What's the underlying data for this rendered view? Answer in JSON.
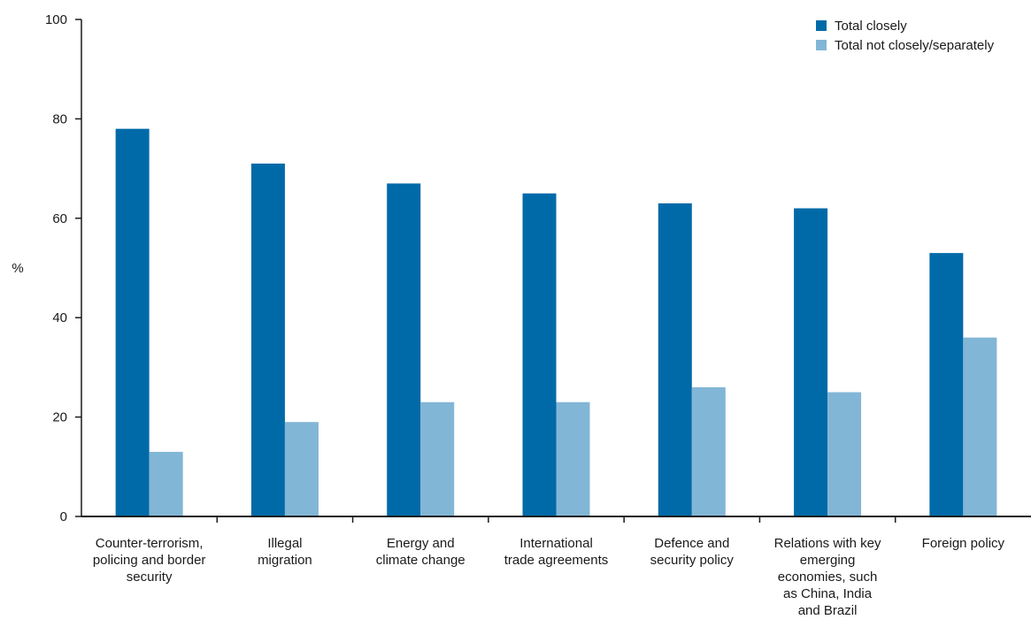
{
  "chart_data": {
    "type": "bar",
    "title": "",
    "xlabel": "",
    "ylabel": "%",
    "ylim": [
      0,
      100
    ],
    "yticks": [
      0,
      20,
      40,
      60,
      80,
      100
    ],
    "grid": false,
    "legend_position": "top-right",
    "categories": [
      [
        "Counter-terrorism,",
        "policing and border",
        "security"
      ],
      [
        "Illegal",
        "migration"
      ],
      [
        "Energy and",
        "climate change"
      ],
      [
        "International",
        "trade agreements"
      ],
      [
        "Defence and",
        "security policy"
      ],
      [
        "Relations with key",
        "emerging",
        "economies, such",
        "as China, India",
        "and Brazil"
      ],
      [
        "Foreign policy"
      ]
    ],
    "series": [
      {
        "name": "Total closely",
        "color": "#006aa8",
        "values": [
          78,
          71,
          67,
          65,
          63,
          62,
          53
        ]
      },
      {
        "name": "Total not closely/separately",
        "color": "#82b6d6",
        "values": [
          13,
          19,
          23,
          23,
          26,
          25,
          36
        ]
      }
    ]
  }
}
